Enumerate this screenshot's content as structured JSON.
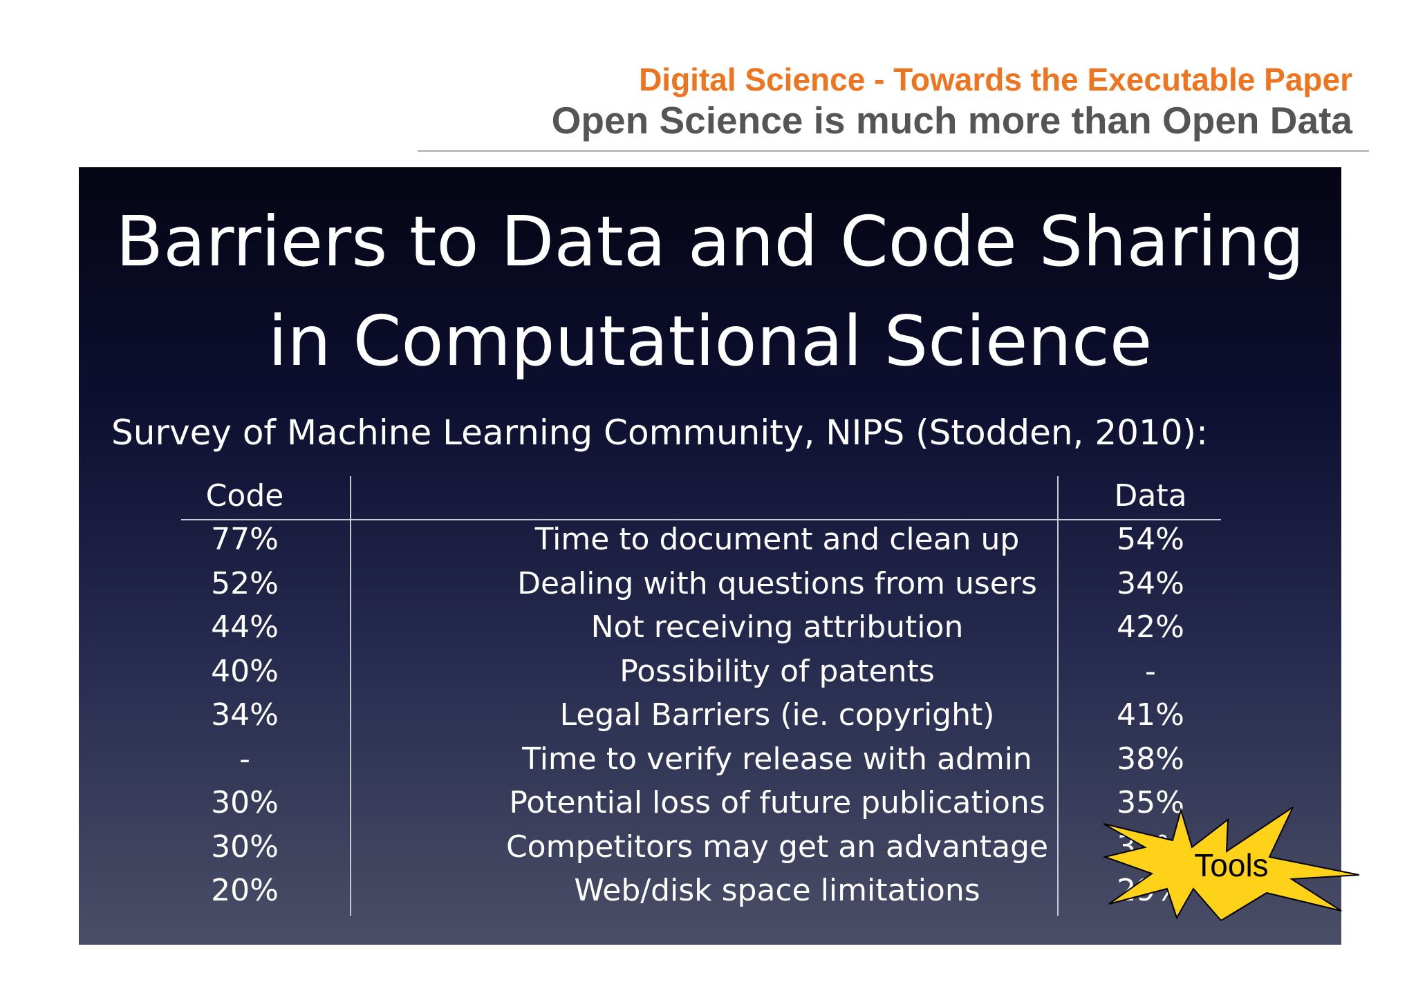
{
  "header": {
    "top_title": "Digital Science  - Towards the Executable Paper",
    "subtitle": "Open Science is much more than Open Data"
  },
  "slide": {
    "title_line1": "Barriers to Data and Code Sharing",
    "title_line2": "in Computational Science",
    "survey_caption": "Survey of Machine Learning Community, NIPS (Stodden, 2010):",
    "columns": {
      "code": "Code",
      "data": "Data"
    },
    "rows": [
      {
        "code": "77%",
        "barrier": "Time to document and clean up",
        "data": "54%"
      },
      {
        "code": "52%",
        "barrier": "Dealing with questions from users",
        "data": "34%"
      },
      {
        "code": "44%",
        "barrier": "Not receiving attribution",
        "data": "42%"
      },
      {
        "code": "40%",
        "barrier": "Possibility of patents",
        "data": "-"
      },
      {
        "code": "34%",
        "barrier": "Legal Barriers (ie. copyright)",
        "data": "41%"
      },
      {
        "code": "-",
        "barrier": "Time to verify release with admin",
        "data": "38%"
      },
      {
        "code": "30%",
        "barrier": "Potential loss of future publications",
        "data": "35%"
      },
      {
        "code": "30%",
        "barrier": "Competitors may get an advantage",
        "data": "33%"
      },
      {
        "code": "20%",
        "barrier": "Web/disk space limitations",
        "data": "29%"
      }
    ]
  },
  "starburst": {
    "label": "Tools",
    "fill": "#ffd21a",
    "stroke": "#000000"
  },
  "colors": {
    "accent_orange": "#ee7520",
    "subtitle_grey": "#555555",
    "panel_dark": "#050514"
  }
}
